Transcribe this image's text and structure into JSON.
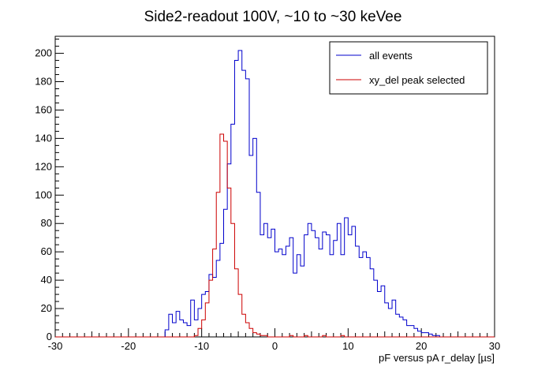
{
  "chart_data": {
    "type": "histogram",
    "title": "Side2-readout 100V, ~10 to ~30 keVee",
    "xlabel": "pF versus pA r_delay [µs]",
    "ylabel": "",
    "xlim": [
      -30,
      30
    ],
    "ylim": [
      0,
      212
    ],
    "x_ticks": [
      -30,
      -20,
      -10,
      0,
      10,
      20,
      30
    ],
    "y_ticks": [
      0,
      20,
      40,
      60,
      80,
      100,
      120,
      140,
      160,
      180,
      200
    ],
    "grid": false,
    "legend_position": "top-right",
    "bins": {
      "start": -15,
      "width": 0.5
    },
    "series": [
      {
        "name": "all events",
        "color": "#0000cc",
        "values": [
          5,
          16,
          10,
          18,
          12,
          10,
          8,
          26,
          12,
          20,
          30,
          32,
          44,
          42,
          54,
          66,
          90,
          122,
          150,
          195,
          202,
          188,
          182,
          128,
          140,
          102,
          72,
          80,
          70,
          76,
          60,
          62,
          58,
          64,
          70,
          45,
          58,
          50,
          72,
          80,
          75,
          70,
          62,
          74,
          72,
          58,
          68,
          80,
          58,
          84,
          72,
          78,
          64,
          56,
          60,
          56,
          48,
          40,
          32,
          36,
          24,
          20,
          26,
          16,
          14,
          12,
          8,
          8,
          6,
          4,
          3,
          3,
          2,
          1,
          1
        ]
      },
      {
        "name": "xy_del peak selected",
        "color": "#cc0000",
        "values": [
          0,
          0,
          0,
          0,
          0,
          0,
          0,
          0,
          1,
          6,
          12,
          24,
          40,
          62,
          102,
          143,
          138,
          105,
          80,
          48,
          30,
          16,
          10,
          6,
          3,
          2,
          1,
          1,
          0,
          0,
          0,
          0,
          0,
          0,
          1,
          0,
          0,
          0,
          1,
          0,
          0,
          0,
          0,
          1,
          0,
          0,
          0,
          0,
          1,
          0,
          0,
          0,
          0,
          0,
          0,
          0,
          0,
          0,
          0,
          0,
          0,
          0,
          0,
          0,
          0,
          0,
          0,
          0,
          0,
          0,
          0,
          0,
          0,
          0,
          0
        ]
      }
    ]
  }
}
